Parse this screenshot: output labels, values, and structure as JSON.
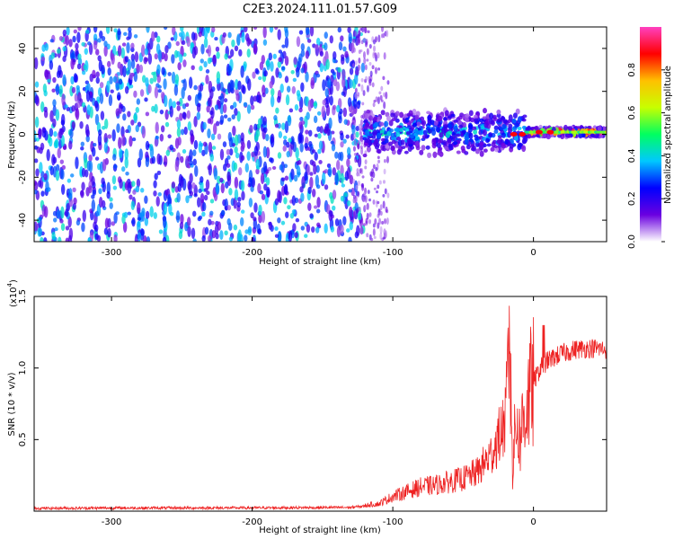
{
  "title": "C2E3.2024.111.01.57.G09",
  "chart_data": [
    {
      "type": "heatmap",
      "title": "C2E3.2024.111.01.57.G09",
      "xlabel": "Height of straight line (km)",
      "ylabel": "Frequency (Hz)",
      "xlim": [
        -355,
        52
      ],
      "ylim": [
        -50,
        50
      ],
      "x_ticks": [
        -300,
        -200,
        -100,
        0
      ],
      "x_tick_labels": [
        "-300",
        "-200",
        "-100",
        "0"
      ],
      "y_ticks": [
        -40,
        -20,
        0,
        20,
        40
      ],
      "y_tick_labels": [
        "-40",
        "-20",
        "0",
        "20",
        "40"
      ],
      "colorbar": {
        "label": "Normalized spectral amplitude",
        "range": [
          0,
          1
        ],
        "ticks": [
          0.0,
          0.2,
          0.4,
          0.6,
          0.8
        ],
        "tick_labels": [
          "0.0",
          "0.2",
          "0.4",
          "0.6",
          "0.8"
        ],
        "stops": [
          "#ffffff",
          "#6a00e0",
          "#0000ff",
          "#00c8ff",
          "#00ff60",
          "#c8ff00",
          "#ffc000",
          "#ff0000",
          "#ff40c0"
        ]
      },
      "description_values": {
        "noise_region_x": [
          -355,
          -120
        ],
        "noise_amplitude": 0.35,
        "signal_region_x": [
          -120,
          52
        ],
        "signal_center_freq": 1,
        "signal_peak_amplitude": 1.0
      }
    },
    {
      "type": "line",
      "xlabel": "Height of straight line (km)",
      "ylabel": "SNR (10 * v/v)",
      "y_multiplier": "(x10",
      "y_multiplier_exp": "4",
      "xlim": [
        -355,
        52
      ],
      "ylim": [
        0,
        15000
      ],
      "x_ticks": [
        -300,
        -200,
        -100,
        0
      ],
      "x_tick_labels": [
        "-300",
        "-200",
        "-100",
        "0"
      ],
      "y_ticks": [
        5000,
        10000,
        15000
      ],
      "y_tick_labels": [
        "0.5",
        "1.0",
        "1.5"
      ],
      "color": "#ee2222",
      "series_shape": {
        "x": [
          -355,
          -300,
          -200,
          -130,
          -110,
          -100,
          -90,
          -80,
          -70,
          -60,
          -50,
          -40,
          -30,
          -25,
          -20,
          -17,
          -15,
          -12,
          -10,
          -5,
          0,
          5,
          10,
          20,
          30,
          40,
          52
        ],
        "y": [
          200,
          220,
          230,
          260,
          450,
          900,
          1200,
          1500,
          1600,
          1800,
          2000,
          2400,
          3500,
          4500,
          5500,
          12000,
          3000,
          6500,
          5000,
          7500,
          9000,
          10000,
          10500,
          11000,
          11300,
          11400,
          11300
        ]
      }
    }
  ]
}
